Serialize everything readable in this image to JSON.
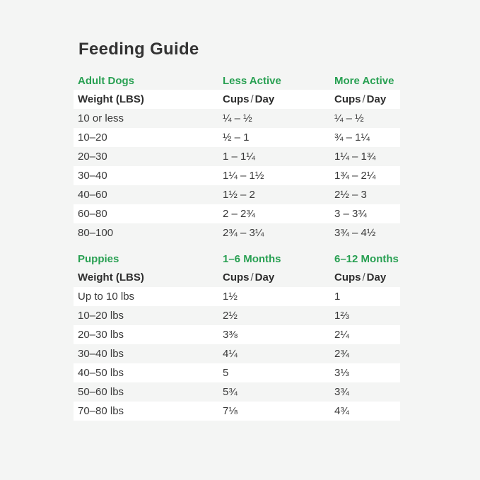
{
  "title": "Feeding Guide",
  "colors": {
    "accent": "#28a052",
    "background": "#f4f5f4",
    "stripe": "#ffffff",
    "text": "#3a3a3a"
  },
  "adult": {
    "section_label": "Adult Dogs",
    "col2_label": "Less Active",
    "col3_label": "More Active",
    "weight_header": "Weight (LBS)",
    "cups_word": "Cups",
    "slash": "/",
    "day_word": "Day",
    "rows": [
      {
        "weight": "10 or less",
        "less_active": "¼ – ½",
        "more_active": "¼ – ½"
      },
      {
        "weight": "10–20",
        "less_active": "½ – 1",
        "more_active": "¾ – 1¼"
      },
      {
        "weight": "20–30",
        "less_active": "1 – 1¼",
        "more_active": "1¼ – 1¾"
      },
      {
        "weight": "30–40",
        "less_active": "1¼ – 1½",
        "more_active": "1¾ – 2¼"
      },
      {
        "weight": "40–60",
        "less_active": "1½ – 2",
        "more_active": "2½ – 3"
      },
      {
        "weight": "60–80",
        "less_active": "2 – 2¾",
        "more_active": "3 – 3¾"
      },
      {
        "weight": "80–100",
        "less_active": "2¾ – 3¼",
        "more_active": "3¾ – 4½"
      }
    ]
  },
  "puppies": {
    "section_label": "Puppies",
    "col2_label": "1–6 Months",
    "col3_label": "6–12 Months",
    "weight_header": "Weight (LBS)",
    "cups_word": "Cups",
    "slash": "/",
    "day_word": "Day",
    "rows": [
      {
        "weight": "Up to 10 lbs",
        "months_1_6": "1½",
        "months_6_12": "1"
      },
      {
        "weight": "10–20 lbs",
        "months_1_6": "2½",
        "months_6_12": "1⅔"
      },
      {
        "weight": "20–30 lbs",
        "months_1_6": "3⅜",
        "months_6_12": "2¼"
      },
      {
        "weight": "30–40 lbs",
        "months_1_6": "4¼",
        "months_6_12": "2¾"
      },
      {
        "weight": "40–50 lbs",
        "months_1_6": "5",
        "months_6_12": "3⅓"
      },
      {
        "weight": "50–60 lbs",
        "months_1_6": "5¾",
        "months_6_12": "3¾"
      },
      {
        "weight": "70–80 lbs",
        "months_1_6": "7⅛",
        "months_6_12": "4¾"
      }
    ]
  }
}
